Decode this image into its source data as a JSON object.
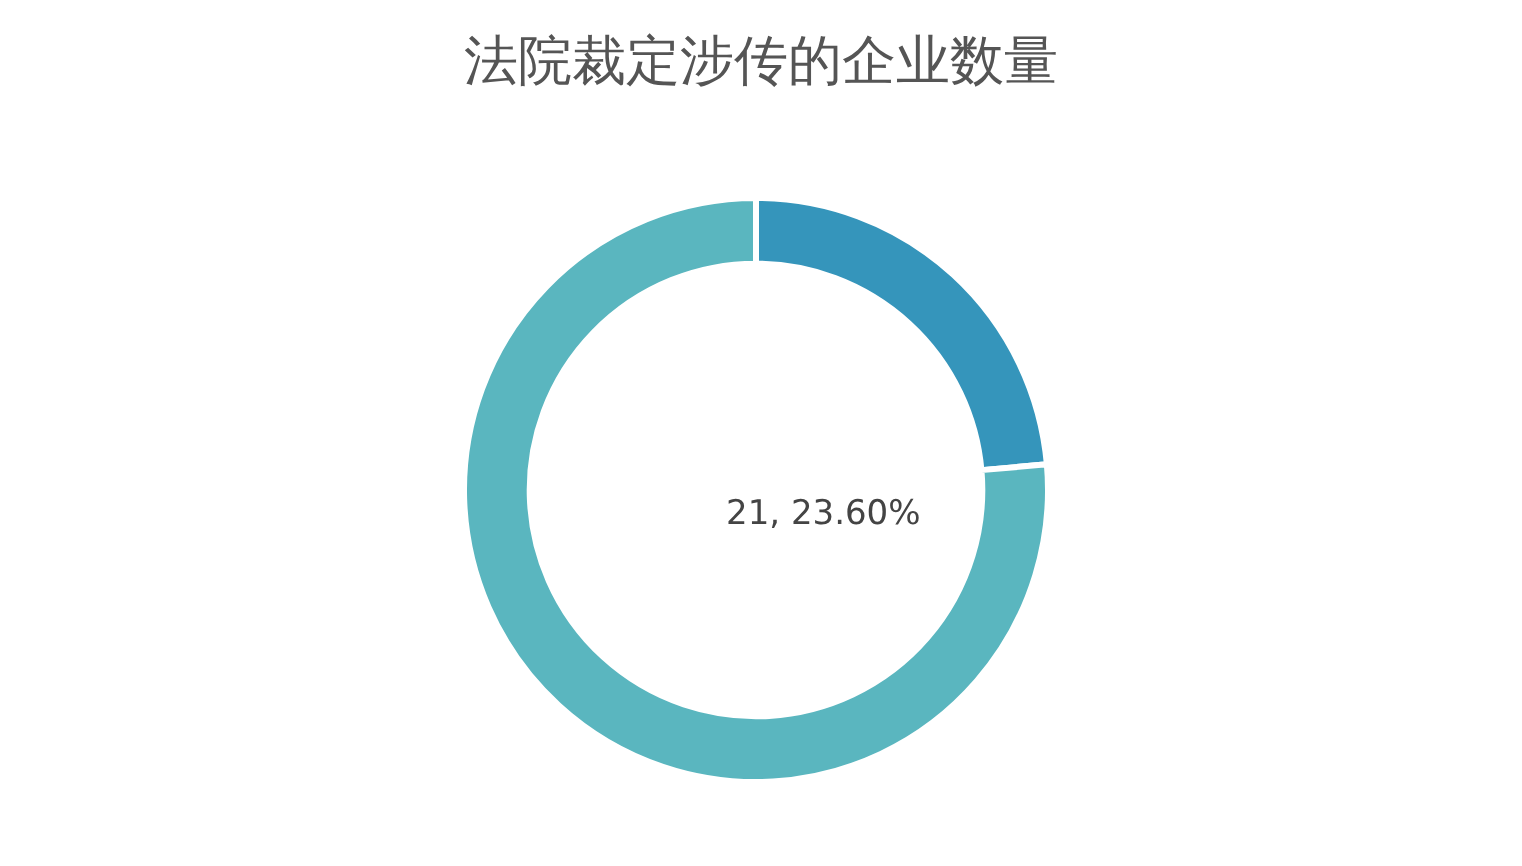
{
  "chart_data": {
    "type": "donut",
    "title": "法院裁定涉传的企业数量",
    "categories": [
      null,
      null
    ],
    "values": [
      23.6,
      76.4
    ],
    "colors": [
      "#3595bb",
      "#5ab6bf"
    ],
    "annotations": [
      "21, 23.60%"
    ]
  }
}
